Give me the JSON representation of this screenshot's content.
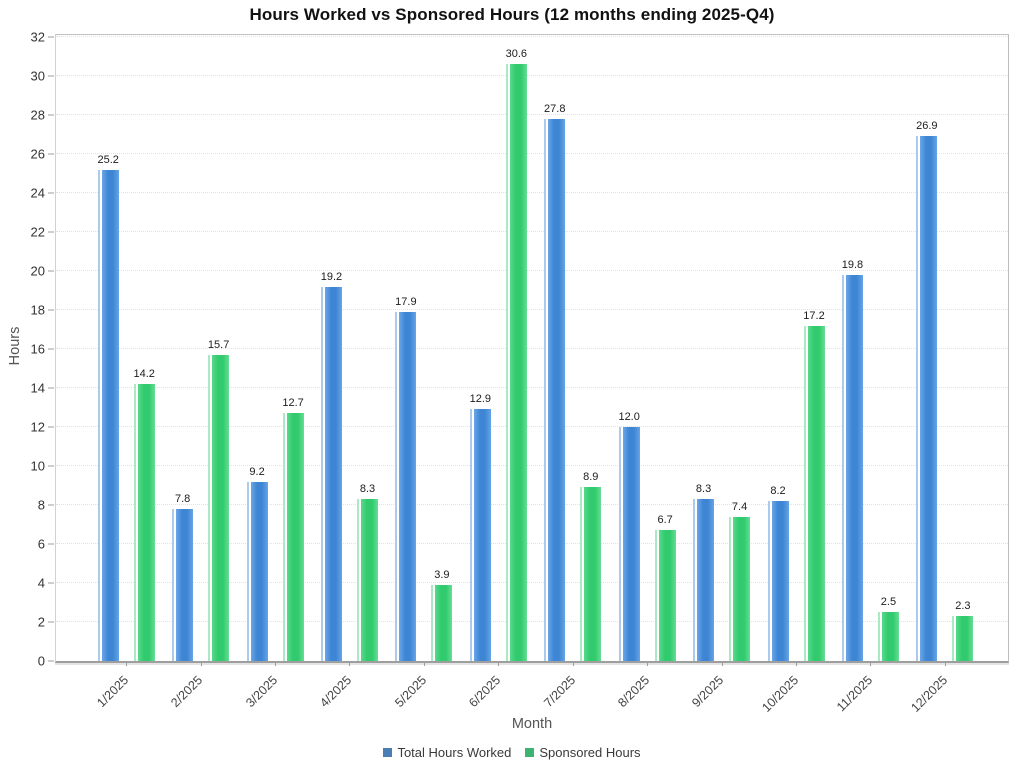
{
  "chart_data": {
    "type": "bar",
    "title": "Hours Worked vs Sponsored Hours (12 months ending 2025-Q4)",
    "xlabel": "Month",
    "ylabel": "Hours",
    "ylim": [
      0,
      32
    ],
    "ytick_step": 2,
    "grid": true,
    "grid_style": "dotted",
    "legend_position": "bottom",
    "value_label_decimals": 1,
    "categories": [
      "1/2025",
      "2/2025",
      "3/2025",
      "4/2025",
      "5/2025",
      "6/2025",
      "7/2025",
      "8/2025",
      "9/2025",
      "10/2025",
      "11/2025",
      "12/2025"
    ],
    "series": [
      {
        "name": "Total Hours Worked",
        "values": [
          25.2,
          7.8,
          9.2,
          19.2,
          17.9,
          12.9,
          27.8,
          12.0,
          8.3,
          8.2,
          19.8,
          26.9
        ],
        "legend_color": "#4a7eb5",
        "colors": {
          "edge": "#adc9ec",
          "stripe": "#ffffff",
          "light": "#6ba6e8",
          "main": "#3e86d4",
          "right": "#66a4e6"
        }
      },
      {
        "name": "Sponsored Hours",
        "values": [
          14.2,
          15.7,
          12.7,
          8.3,
          3.9,
          30.6,
          8.9,
          6.7,
          7.4,
          17.2,
          2.5,
          2.3
        ],
        "legend_color": "#3cb371",
        "colors": {
          "edge": "#abe9c5",
          "stripe": "#ffffff",
          "light": "#58da8a",
          "main": "#31ca6e",
          "right": "#65dd93"
        }
      }
    ],
    "style": {
      "background": "#ffffff",
      "gridline_color": "#e2e2e2",
      "axis_color": "#9e9e9e",
      "tick_label_color": "#333333",
      "value_label_color": "#1c1c1c",
      "axis_title_color": "#555555",
      "title_color": "#111111"
    }
  }
}
